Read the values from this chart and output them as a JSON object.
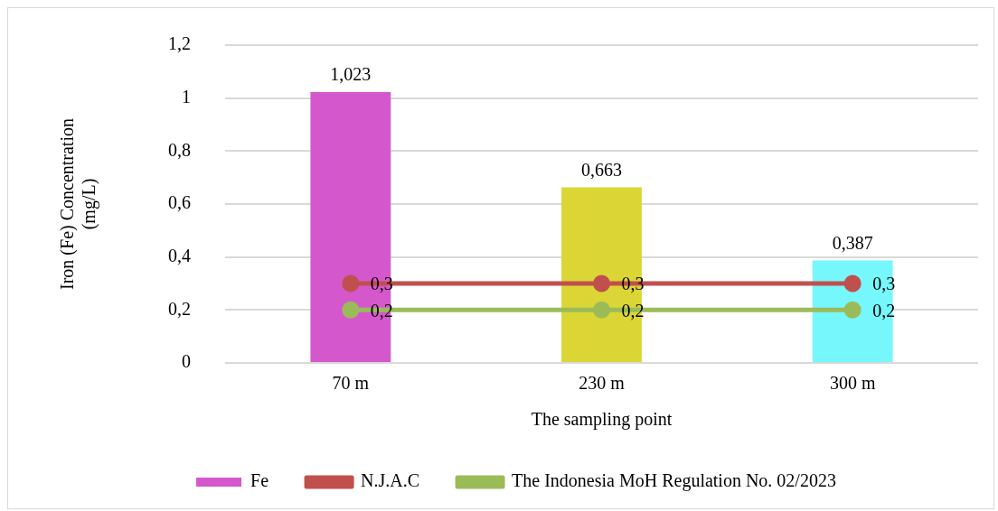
{
  "chart_data": {
    "type": "bar",
    "xlabel": "The sampling point",
    "ylabel": "Iron (Fe) Concentration (mg/L)",
    "categories": [
      "70 m",
      "230 m",
      "300 m"
    ],
    "series": [
      {
        "name": "Fe",
        "colors": [
          "#d458cc",
          "#dbd635",
          "#76f7fb"
        ],
        "values": [
          1.023,
          0.663,
          0.387
        ],
        "value_labels": [
          "1,023",
          "0,663",
          "0,387"
        ]
      },
      {
        "type": "line",
        "name": "N.J.A.C",
        "color": "#c0504d",
        "values": [
          0.3,
          0.3,
          0.3
        ],
        "value_labels": [
          "0,3",
          "0,3",
          "0,3"
        ]
      },
      {
        "type": "line",
        "name": "The Indonesia MoH Regulation No. 02/2023",
        "color": "#9bbb59",
        "values": [
          0.2,
          0.2,
          0.2
        ],
        "value_labels": [
          "0,2",
          "0,2",
          "0,2"
        ]
      }
    ],
    "ylim": [
      0,
      1.2
    ],
    "yticks": [
      0,
      {
        "value": 0.2,
        "label": "0,2"
      },
      {
        "value": 0.4,
        "label": "0,4"
      },
      {
        "value": 0.6,
        "label": "0,6"
      },
      {
        "value": 0.8,
        "label": "0,8"
      },
      1,
      {
        "value": 1.2,
        "label": "1,2"
      }
    ],
    "grid": "y",
    "legend": "bottom",
    "marker": "circle",
    "line_style": "solid"
  }
}
